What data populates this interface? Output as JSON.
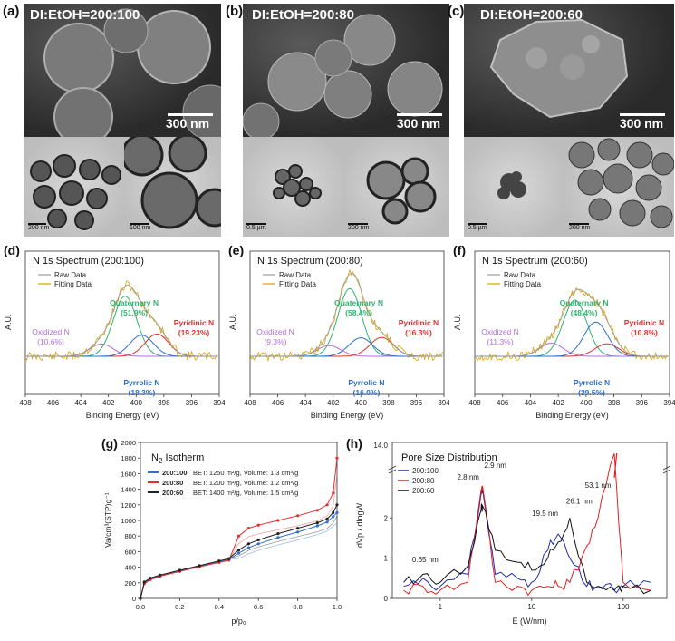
{
  "panels": {
    "a": {
      "label": "(a)",
      "ratio": "DI:EtOH=200:100",
      "sem_scale": "300 nm",
      "tem1_scale": "200 nm",
      "tem2_scale": "100 nm"
    },
    "b": {
      "label": "(b)",
      "ratio": "DI:EtOH=200:80",
      "sem_scale": "300 nm",
      "tem1_scale": "0.5 µm",
      "tem2_scale": "200 nm"
    },
    "c": {
      "label": "(c)",
      "ratio": "DI:EtOH=200:60",
      "sem_scale": "300 nm",
      "tem1_scale": "0.5 µm",
      "tem2_scale": "200 nm"
    }
  },
  "xps": {
    "d": {
      "label": "(d)",
      "title": "N 1s Spectrum (200:100)",
      "quat": "Quaternary N",
      "quat_pct": "(51.9%)",
      "oxi": "Oxidized N",
      "oxi_pct": "(10.6%)",
      "pyri": "Pyridinic N",
      "pyri_pct": "(19.23%)",
      "pyrr": "Pyrrolic N",
      "pyrr_pct": "(18.3%)"
    },
    "e": {
      "label": "(e)",
      "title": "N 1s Spectrum (200:80)",
      "quat": "Quaternary N",
      "quat_pct": "(58.4%)",
      "oxi": "Oxidized N",
      "oxi_pct": "(9.3%)",
      "pyri": "Pyridinic N",
      "pyri_pct": "(16.3%)",
      "pyrr": "Pyrrolic N",
      "pyrr_pct": "(16.0%)"
    },
    "f": {
      "label": "(f)",
      "title": "N 1s Spectrum (200:60)",
      "quat": "Quaternary N",
      "quat_pct": "(48.4%)",
      "oxi": "Oxidized N",
      "oxi_pct": "(11.3%)",
      "pyri": "Pyridinic N",
      "pyri_pct": "(10.8%)",
      "pyrr": "Pyrrolic N",
      "pyrr_pct": "(29.5%)"
    },
    "legend_raw": "Raw Data",
    "legend_fit": "Fitting Data",
    "ylabel": "A.U.",
    "xlabel": "Binding Energy (eV)",
    "xticks": [
      "408",
      "406",
      "404",
      "402",
      "400",
      "398",
      "396",
      "394"
    ]
  },
  "isotherm": {
    "label": "(g)",
    "title_main": "N",
    "title_sub": "2",
    "title_rest": " Isotherm",
    "legend": [
      {
        "name": "200:100",
        "text": "BET: 1250 m²/g, Volume: 1.3 cm³/g",
        "color": "#2f6fd0"
      },
      {
        "name": "200:80",
        "text": "BET: 1200 m²/g, Volume: 1.2 cm³/g",
        "color": "#e03030"
      },
      {
        "name": "200:60",
        "text": "BET: 1400 m²/g, Volume: 1.5 cm³/g",
        "color": "#222222"
      }
    ],
    "ylabel": "Va/cm³(STP)g⁻¹",
    "xlabel": "p/p₀",
    "yticks": [
      "0",
      "200",
      "400",
      "600",
      "800",
      "1000",
      "1200",
      "1400",
      "1600",
      "1800",
      "2000"
    ],
    "xticks": [
      "0.0",
      "0.2",
      "0.4",
      "0.6",
      "0.8",
      "1.0"
    ]
  },
  "pore": {
    "label": "(h)",
    "title": "Pore Size Distribution",
    "legend": [
      {
        "name": "200:100",
        "color": "#1f2fa8"
      },
      {
        "name": "200:80",
        "color": "#e02020"
      },
      {
        "name": "200:60",
        "color": "#111111"
      }
    ],
    "ylabel": "dVp / dlogW",
    "xlabel": "E (W/nm)",
    "ytop": "14.0",
    "yticks": [
      "0",
      "1",
      "2"
    ],
    "xticks": [
      "1",
      "10",
      "100"
    ],
    "annotations": [
      "0.65 nm",
      "2.8 nm",
      "2.9 nm",
      "19.5 nm",
      "26.1 nm",
      "53.1 nm"
    ]
  },
  "chart_data": [
    {
      "type": "line",
      "title": "N 1s Spectrum (200:100)",
      "xlabel": "Binding Energy (eV)",
      "ylabel": "A.U.",
      "xlim": [
        408,
        394
      ],
      "series": [
        {
          "name": "Quaternary N",
          "center": 400.8,
          "percent": 51.9
        },
        {
          "name": "Oxidized N",
          "center": 402.5,
          "percent": 10.6
        },
        {
          "name": "Pyridinic N",
          "center": 398.5,
          "percent": 19.23
        },
        {
          "name": "Pyrrolic N",
          "center": 399.6,
          "percent": 18.3
        }
      ]
    },
    {
      "type": "line",
      "title": "N 1s Spectrum (200:80)",
      "xlabel": "Binding Energy (eV)",
      "ylabel": "A.U.",
      "xlim": [
        408,
        394
      ],
      "series": [
        {
          "name": "Quaternary N",
          "center": 400.8,
          "percent": 58.4
        },
        {
          "name": "Oxidized N",
          "center": 402.3,
          "percent": 9.3
        },
        {
          "name": "Pyridinic N",
          "center": 398.5,
          "percent": 16.3
        },
        {
          "name": "Pyrrolic N",
          "center": 400.0,
          "percent": 16.0
        }
      ]
    },
    {
      "type": "line",
      "title": "N 1s Spectrum (200:60)",
      "xlabel": "Binding Energy (eV)",
      "ylabel": "A.U.",
      "xlim": [
        408,
        394
      ],
      "series": [
        {
          "name": "Quaternary N",
          "center": 400.8,
          "percent": 48.4
        },
        {
          "name": "Oxidized N",
          "center": 402.5,
          "percent": 11.3
        },
        {
          "name": "Pyridinic N",
          "center": 398.5,
          "percent": 10.8
        },
        {
          "name": "Pyrrolic N",
          "center": 399.3,
          "percent": 29.5
        }
      ]
    },
    {
      "type": "line",
      "title": "N2 Isotherm",
      "xlabel": "p/p0",
      "ylabel": "Va/cm3(STP)g-1",
      "xlim": [
        0,
        1
      ],
      "ylim": [
        0,
        2000
      ],
      "x": [
        0,
        0.02,
        0.05,
        0.1,
        0.2,
        0.3,
        0.4,
        0.45,
        0.5,
        0.55,
        0.6,
        0.7,
        0.8,
        0.9,
        0.95,
        0.98,
        1.0
      ],
      "series": [
        {
          "name": "200:100",
          "values": [
            0,
            200,
            250,
            290,
            350,
            410,
            470,
            500,
            580,
            650,
            700,
            780,
            850,
            930,
            980,
            1050,
            1100
          ]
        },
        {
          "name": "200:80",
          "values": [
            0,
            190,
            240,
            285,
            345,
            405,
            460,
            490,
            800,
            900,
            940,
            1000,
            1060,
            1130,
            1200,
            1350,
            1800
          ]
        },
        {
          "name": "200:60",
          "values": [
            0,
            210,
            260,
            300,
            360,
            420,
            480,
            510,
            620,
            700,
            750,
            830,
            900,
            970,
            1020,
            1100,
            1200
          ]
        }
      ]
    },
    {
      "type": "line",
      "title": "Pore Size Distribution",
      "xlabel": "E (W/nm)",
      "ylabel": "dVp / dlogW",
      "x": [
        0.4,
        0.65,
        1,
        2,
        2.8,
        2.9,
        4,
        7,
        10,
        15,
        19.5,
        26.1,
        40,
        53.1,
        80,
        100,
        200
      ],
      "series": [
        {
          "name": "200:100",
          "values": [
            0.3,
            0.5,
            0.3,
            0.6,
            2.6,
            2.7,
            0.6,
            0.5,
            0.4,
            1.2,
            1.6,
            1.0,
            0.3,
            0.3,
            0.2,
            0.3,
            0.4
          ]
        },
        {
          "name": "200:80",
          "values": [
            0.2,
            0.3,
            0.2,
            0.4,
            2.7,
            2.8,
            0.4,
            0.3,
            0.2,
            0.3,
            0.3,
            0.4,
            1.3,
            2.0,
            3.6,
            0.4,
            0.2
          ]
        },
        {
          "name": "200:60",
          "values": [
            0.4,
            0.6,
            0.4,
            0.8,
            2.2,
            2.3,
            1.2,
            0.9,
            0.7,
            1.0,
            1.4,
            2.0,
            0.4,
            0.3,
            0.2,
            0.3,
            0.2
          ]
        }
      ]
    }
  ]
}
